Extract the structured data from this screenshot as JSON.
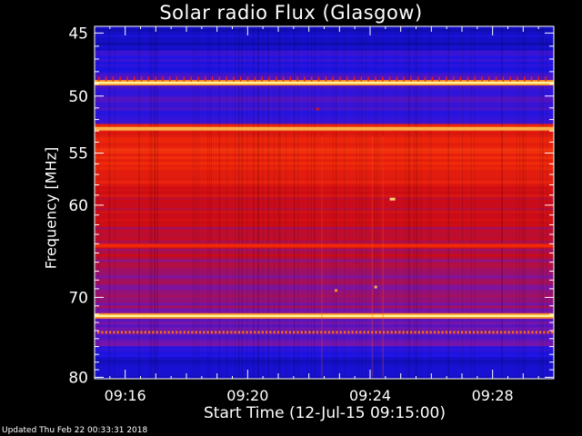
{
  "chart_data": {
    "type": "heatmap",
    "title": "Solar radio Flux (Glasgow)",
    "xlabel": "Start Time (12-Jul-15 09:15:00)",
    "ylabel": "Frequency [MHz]",
    "x_ticks": [
      "09:16",
      "09:20",
      "09:24",
      "09:28"
    ],
    "x_tick_minutes": [
      16,
      20,
      24,
      28
    ],
    "x_range_minutes": [
      15,
      30
    ],
    "y_ticks": [
      45,
      50,
      55,
      60,
      70,
      80
    ],
    "y_range_mhz": [
      44.5,
      80.2
    ],
    "y_scale": "log",
    "colormap": "blue-red-yellow",
    "colors": {
      "low": "#0a10c8",
      "mid": "#d81000",
      "high": "#ffe860"
    },
    "bands_mhz": [
      {
        "freq": 48.9,
        "level": 1.0
      },
      {
        "freq": 52.8,
        "level": 0.92
      },
      {
        "freq": 64.2,
        "level": 0.72
      },
      {
        "freq": 72.2,
        "level": 1.0
      },
      {
        "freq": 74.2,
        "level": 0.7
      }
    ],
    "hot_region_mhz": [
      53.0,
      60.5
    ],
    "footer": "Updated Thu Feb 22 00:33:31 2018"
  }
}
